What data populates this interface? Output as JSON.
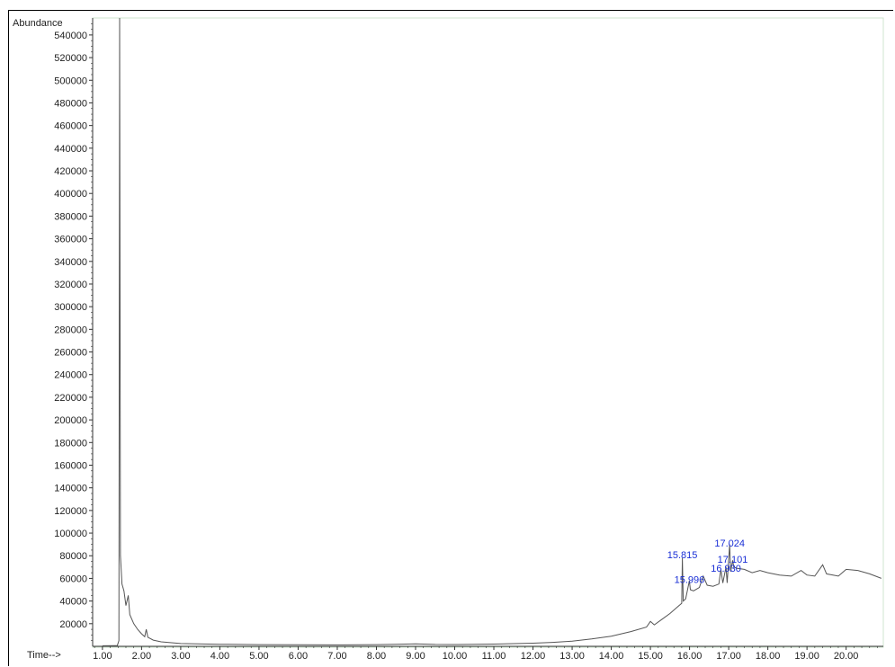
{
  "colors": {
    "trace": "#555555",
    "peak_label": "#1a2fd6",
    "plot_border": "#cfe6cf",
    "axis": "#333333"
  },
  "chart_data": {
    "type": "line",
    "title": "",
    "xlabel": "Time-->",
    "ylabel": "Abundance",
    "xlim": [
      0.75,
      20.95
    ],
    "ylim": [
      0,
      555000
    ],
    "x_ticks": [
      "1.00",
      "2.00",
      "3.00",
      "4.00",
      "5.00",
      "6.00",
      "7.00",
      "8.00",
      "9.00",
      "10.00",
      "11.00",
      "12.00",
      "13.00",
      "14.00",
      "15.00",
      "16.00",
      "17.00",
      "18.00",
      "19.00",
      "20.00"
    ],
    "y_ticks": [
      "20000",
      "40000",
      "60000",
      "80000",
      "100000",
      "120000",
      "140000",
      "160000",
      "180000",
      "200000",
      "220000",
      "240000",
      "260000",
      "280000",
      "300000",
      "320000",
      "340000",
      "360000",
      "380000",
      "400000",
      "420000",
      "440000",
      "460000",
      "480000",
      "500000",
      "520000",
      "540000"
    ],
    "grid": false,
    "peak_labels": [
      {
        "text": "15.815",
        "x": 15.815,
        "y": 78000
      },
      {
        "text": "15.996",
        "x": 15.996,
        "y": 56000
      },
      {
        "text": "16.930",
        "x": 16.93,
        "y": 66000
      },
      {
        "text": "17.101",
        "x": 17.101,
        "y": 74000
      },
      {
        "text": "17.024",
        "x": 17.024,
        "y": 88000
      }
    ],
    "series": [
      {
        "points": [
          [
            1.0,
            500
          ],
          [
            1.38,
            600
          ],
          [
            1.42,
            5000
          ],
          [
            1.44,
            560000
          ],
          [
            1.46,
            80000
          ],
          [
            1.5,
            55000
          ],
          [
            1.55,
            49000
          ],
          [
            1.6,
            36000
          ],
          [
            1.66,
            45000
          ],
          [
            1.7,
            28000
          ],
          [
            1.8,
            20000
          ],
          [
            1.9,
            15000
          ],
          [
            2.0,
            11000
          ],
          [
            2.08,
            8500
          ],
          [
            2.12,
            15000
          ],
          [
            2.16,
            8000
          ],
          [
            2.3,
            5500
          ],
          [
            2.5,
            4000
          ],
          [
            3.0,
            2500
          ],
          [
            4.0,
            1800
          ],
          [
            5.0,
            1500
          ],
          [
            6.0,
            1400
          ],
          [
            7.0,
            1300
          ],
          [
            8.0,
            1500
          ],
          [
            8.5,
            1800
          ],
          [
            9.0,
            2200
          ],
          [
            9.5,
            1700
          ],
          [
            10.0,
            1600
          ],
          [
            11.0,
            2000
          ],
          [
            12.0,
            2800
          ],
          [
            12.5,
            3500
          ],
          [
            13.0,
            4500
          ],
          [
            13.5,
            6500
          ],
          [
            14.0,
            9000
          ],
          [
            14.5,
            13000
          ],
          [
            14.9,
            17000
          ],
          [
            15.0,
            22000
          ],
          [
            15.1,
            19000
          ],
          [
            15.3,
            24000
          ],
          [
            15.5,
            29000
          ],
          [
            15.7,
            35000
          ],
          [
            15.8,
            38000
          ],
          [
            15.815,
            78000
          ],
          [
            15.84,
            40000
          ],
          [
            15.9,
            42000
          ],
          [
            15.996,
            58000
          ],
          [
            16.02,
            50000
          ],
          [
            16.1,
            49000
          ],
          [
            16.25,
            52000
          ],
          [
            16.35,
            62000
          ],
          [
            16.45,
            54000
          ],
          [
            16.6,
            53000
          ],
          [
            16.75,
            55000
          ],
          [
            16.8,
            68000
          ],
          [
            16.85,
            56000
          ],
          [
            16.93,
            70000
          ],
          [
            16.96,
            56000
          ],
          [
            17.024,
            90000
          ],
          [
            17.05,
            66000
          ],
          [
            17.101,
            76000
          ],
          [
            17.13,
            70000
          ],
          [
            17.2,
            69000
          ],
          [
            17.4,
            68000
          ],
          [
            17.6,
            65000
          ],
          [
            17.8,
            67000
          ],
          [
            18.0,
            65000
          ],
          [
            18.3,
            63000
          ],
          [
            18.6,
            62000
          ],
          [
            18.85,
            67000
          ],
          [
            19.0,
            63000
          ],
          [
            19.2,
            62000
          ],
          [
            19.4,
            72000
          ],
          [
            19.5,
            64000
          ],
          [
            19.8,
            62000
          ],
          [
            20.0,
            68000
          ],
          [
            20.3,
            67000
          ],
          [
            20.6,
            64000
          ],
          [
            20.9,
            60000
          ]
        ]
      }
    ]
  }
}
